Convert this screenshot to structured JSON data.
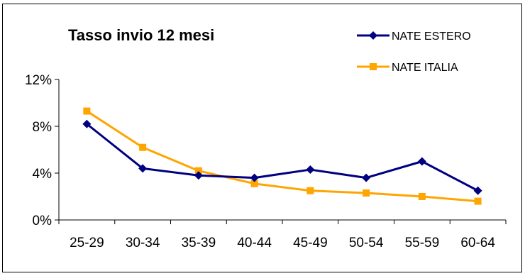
{
  "chart_data": {
    "type": "line",
    "title": "Tasso invio 12 mesi",
    "xlabel": "",
    "ylabel": "",
    "categories": [
      "25-29",
      "30-34",
      "35-39",
      "40-44",
      "45-49",
      "50-54",
      "55-59",
      "60-64"
    ],
    "ylim": [
      0,
      12
    ],
    "yticks": [
      0,
      4,
      8,
      12
    ],
    "ytick_labels": [
      "0%",
      "4%",
      "8%",
      "12%"
    ],
    "legend_position": "top-right",
    "grid": false,
    "series": [
      {
        "name": "NATE ESTERO",
        "values": [
          8.2,
          4.4,
          3.8,
          3.6,
          4.3,
          3.6,
          5.0,
          2.5
        ],
        "color": "#000080",
        "marker": "diamond"
      },
      {
        "name": "NATE ITALIA",
        "values": [
          9.3,
          6.2,
          4.2,
          3.1,
          2.5,
          2.3,
          2.0,
          1.6
        ],
        "color": "#FFA500",
        "marker": "square"
      }
    ]
  }
}
